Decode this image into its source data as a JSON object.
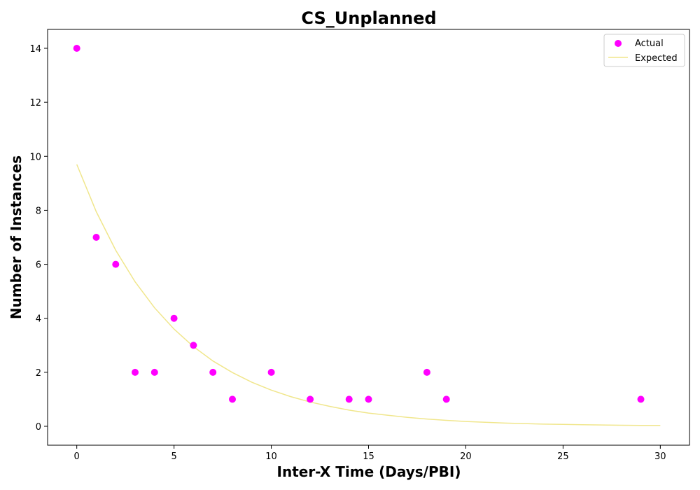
{
  "chart_data": {
    "type": "scatter",
    "title": "CS_Unplanned",
    "xlabel": "Inter-X Time (Days/PBI)",
    "ylabel": "Number of Instances",
    "xlim": [
      -1.5,
      31.5
    ],
    "ylim": [
      -0.7,
      14.7
    ],
    "xticks": [
      0,
      5,
      10,
      15,
      20,
      25,
      30
    ],
    "yticks": [
      0,
      2,
      4,
      6,
      8,
      10,
      12,
      14
    ],
    "grid": false,
    "legend_position": "top-right",
    "series": [
      {
        "name": "Actual",
        "kind": "scatter",
        "color": "#ff00ff",
        "x": [
          0,
          1,
          2,
          3,
          4,
          5,
          6,
          7,
          8,
          10,
          12,
          14,
          15,
          18,
          19,
          29
        ],
        "y": [
          14,
          7,
          6,
          2,
          2,
          4,
          3,
          2,
          1,
          2,
          1,
          1,
          1,
          2,
          1,
          1
        ]
      },
      {
        "name": "Expected",
        "kind": "line",
        "color": "#f0e68c",
        "x": [
          0,
          1,
          2,
          3,
          4,
          5,
          6,
          7,
          8,
          9,
          10,
          11,
          12,
          13,
          14,
          15,
          16,
          17,
          18,
          19,
          20,
          21,
          22,
          23,
          24,
          25,
          26,
          27,
          28,
          29,
          30
        ],
        "y": [
          9.7,
          7.95,
          6.52,
          5.35,
          4.39,
          3.6,
          2.95,
          2.42,
          1.99,
          1.63,
          1.34,
          1.1,
          0.9,
          0.74,
          0.6,
          0.49,
          0.41,
          0.33,
          0.27,
          0.22,
          0.18,
          0.15,
          0.12,
          0.1,
          0.08,
          0.07,
          0.06,
          0.05,
          0.04,
          0.03,
          0.03
        ]
      }
    ]
  }
}
